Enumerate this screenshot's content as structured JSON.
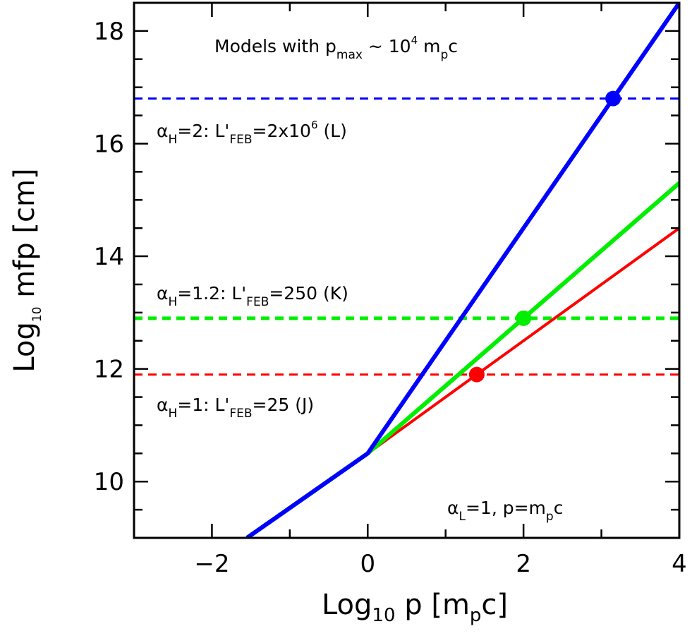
{
  "chart_data": {
    "type": "line",
    "title": "",
    "xlabel": {
      "main": "Log",
      "sub": "10",
      "rest": " p  [m",
      "rest_sub": "p",
      "rest_end": "c]"
    },
    "ylabel": {
      "main": "Log",
      "sub": "10",
      "rest": " mfp  [cm]"
    },
    "xlim": [
      -3,
      4
    ],
    "ylim": [
      9,
      18.5
    ],
    "xticks": [
      -2,
      0,
      2,
      4
    ],
    "xtick_labels": [
      "−2",
      "0",
      "2",
      "4"
    ],
    "yticks": [
      10,
      12,
      14,
      16,
      18
    ],
    "ytick_labels": [
      "10",
      "12",
      "14",
      "16",
      "18"
    ],
    "grid": false,
    "series": [
      {
        "color": "#ff0000",
        "width": 4,
        "x": [
          -1.55,
          0,
          4
        ],
        "y": [
          9.0,
          10.5,
          14.5
        ]
      },
      {
        "color": "#00ee00",
        "width": 6,
        "x": [
          -1.55,
          0,
          4
        ],
        "y": [
          9.0,
          10.5,
          15.3
        ]
      },
      {
        "color": "#0000ff",
        "width": 6,
        "x": [
          -1.55,
          0,
          4
        ],
        "y": [
          9.0,
          10.5,
          18.5
        ]
      }
    ],
    "hlines": [
      {
        "color": "#0000ff",
        "y": 16.8,
        "dash": true,
        "width": 3
      },
      {
        "color": "#00ee00",
        "y": 12.9,
        "dash": true,
        "width": 5
      },
      {
        "color": "#ff0000",
        "y": 11.9,
        "dash": true,
        "width": 3
      }
    ],
    "markers": [
      {
        "color": "#0000ff",
        "x": 3.15,
        "y": 16.8
      },
      {
        "color": "#00ee00",
        "x": 2.0,
        "y": 12.9
      },
      {
        "color": "#ff0000",
        "x": 1.4,
        "y": 11.9
      }
    ],
    "annotations": {
      "models": {
        "a": "Models with p",
        "a_sub": "max",
        "b": " ~ 10",
        "b_sup": "4",
        "c": " m",
        "c_sub": "p",
        "d": "c"
      },
      "alpha_h2": {
        "a": "α",
        "a_sub": "H",
        "b": "=2:  L'",
        "b_sub": "FEB",
        "c": "=2x10",
        "c_sup": "6",
        "d": "  (L)"
      },
      "alpha_h12": {
        "a": "α",
        "a_sub": "H",
        "b": "=1.2:  L'",
        "b_sub": "FEB",
        "c": "=250  (K)"
      },
      "alpha_h1": {
        "a": "α",
        "a_sub": "H",
        "b": "=1:  L'",
        "b_sub": "FEB",
        "c": "=25  (J)"
      },
      "alpha_l": {
        "a": "α",
        "a_sub": "L",
        "b": "=1,  p=m",
        "b_sub": "p",
        "c": "c"
      }
    }
  }
}
